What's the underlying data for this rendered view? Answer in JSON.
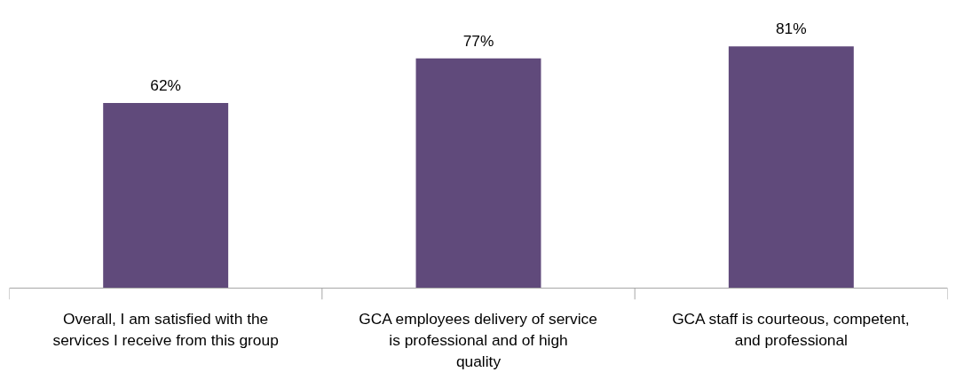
{
  "chart_data": {
    "type": "bar",
    "categories": [
      "Overall, I am satisfied with the services I receive from this group",
      "GCA employees delivery of service is professional and of high quality",
      "GCA staff is courteous, competent, and professional"
    ],
    "values": [
      62,
      77,
      81
    ],
    "color": "#604a7b",
    "value_labels": [
      "62%",
      "77%",
      "81%"
    ]
  }
}
